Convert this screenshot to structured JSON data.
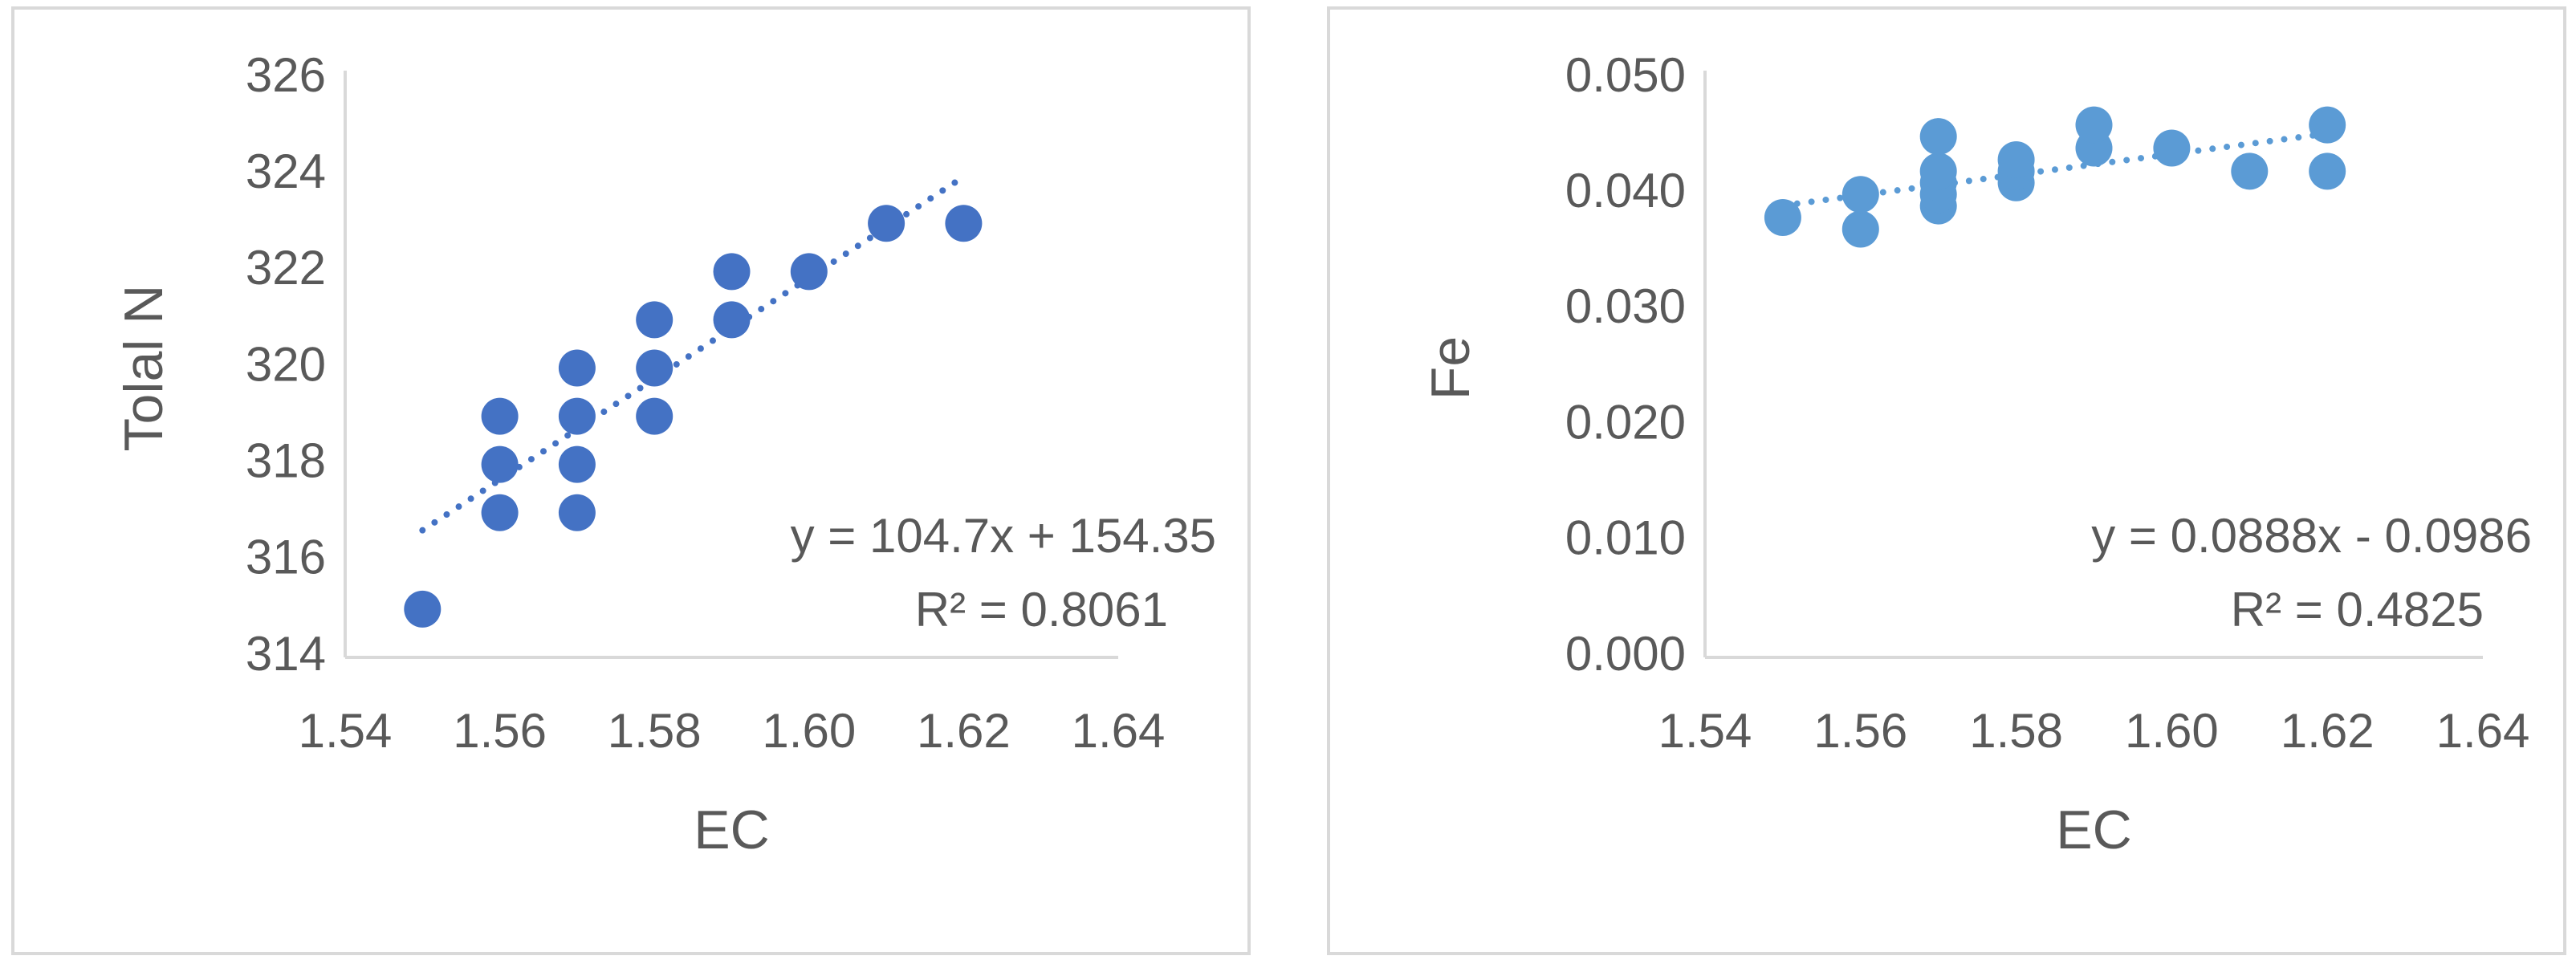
{
  "chart_data": [
    {
      "type": "scatter",
      "x_label": "EC",
      "y_label": "Tolal N",
      "color": "#4472c4",
      "x": [
        1.55,
        1.56,
        1.56,
        1.56,
        1.57,
        1.57,
        1.57,
        1.57,
        1.58,
        1.58,
        1.58,
        1.59,
        1.59,
        1.6,
        1.61,
        1.62
      ],
      "values": [
        315,
        317,
        318,
        319,
        317,
        318,
        319,
        320,
        319,
        320,
        321,
        321,
        322,
        322,
        323,
        323
      ],
      "xlim": [
        1.54,
        1.64
      ],
      "ylim": [
        314,
        326
      ],
      "xticks": [
        1.54,
        1.56,
        1.58,
        {
          "value": 1.6,
          "label": "1.60"
        },
        1.62,
        1.64
      ],
      "yticks": [
        314,
        316,
        318,
        320,
        322,
        324,
        326
      ],
      "trendline": {
        "slope": 104.7,
        "intercept": 154.35,
        "equation": "y = 104.7x + 154.35",
        "r_squared": "R² = 0.8061"
      }
    },
    {
      "type": "scatter",
      "x_label": "EC",
      "y_label": "Fe",
      "color": "#5b9bd5",
      "x": [
        1.55,
        1.56,
        1.56,
        1.57,
        1.57,
        1.57,
        1.57,
        1.57,
        1.58,
        1.58,
        1.58,
        1.59,
        1.59,
        1.6,
        1.61,
        1.62,
        1.62
      ],
      "values": [
        0.038,
        0.037,
        0.04,
        0.039,
        0.04,
        0.041,
        0.042,
        0.045,
        0.041,
        0.042,
        0.043,
        0.044,
        0.046,
        0.044,
        0.042,
        0.042,
        0.046
      ],
      "xlim": [
        1.54,
        1.64
      ],
      "ylim": [
        0,
        0.05
      ],
      "xticks": [
        1.54,
        1.56,
        1.58,
        {
          "value": 1.6,
          "label": "1.60"
        },
        1.62,
        1.64
      ],
      "yticks": [
        {
          "value": 0,
          "label": "0.000"
        },
        {
          "value": 0.01,
          "label": "0.010"
        },
        {
          "value": 0.02,
          "label": "0.020"
        },
        {
          "value": 0.03,
          "label": "0.030"
        },
        {
          "value": 0.04,
          "label": "0.040"
        },
        {
          "value": 0.05,
          "label": "0.050"
        }
      ],
      "trendline": {
        "slope": 0.0888,
        "intercept": -0.0986,
        "equation": "y = 0.0888x - 0.0986",
        "r_squared": "R² = 0.4825"
      }
    }
  ]
}
